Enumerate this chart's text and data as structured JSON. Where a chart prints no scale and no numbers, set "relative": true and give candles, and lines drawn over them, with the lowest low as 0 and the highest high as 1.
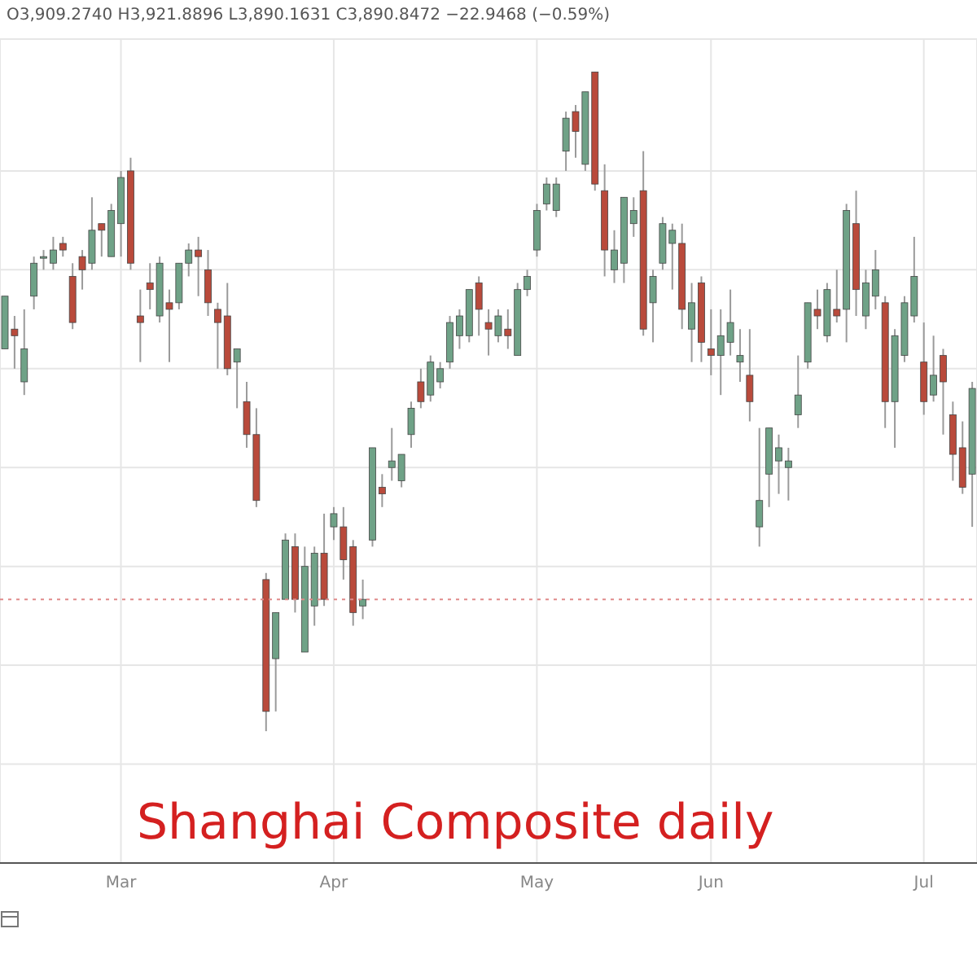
{
  "chart_data": {
    "type": "candlestick",
    "relative": true,
    "grid": true,
    "annotations": [
      "O3,909.2740 H3,921.8896 L3,890.1631 C3,890.8472 −22.9468 (−0.59%)",
      "Shanghai Composite daily"
    ],
    "colors": [
      "#6fa287",
      "#b94a3b",
      "#6fa287",
      "#6fa287",
      "#6fa287",
      "#6fa287",
      "#b94a3b",
      "#b94a3b",
      "#b94a3b",
      "#6fa287",
      "#b94a3b",
      "#6fa287",
      "#6fa287",
      "#b94a3b",
      "#b94a3b",
      "#b94a3b",
      "#6fa287",
      "#b94a3b",
      "#6fa287",
      "#6fa287",
      "#b94a3b",
      "#b94a3b",
      "#b94a3b",
      "#b94a3b",
      "#6fa287",
      "#b94a3b",
      "#b94a3b",
      "#b94a3b",
      "#6fa287",
      "#6fa287",
      "#b94a3b",
      "#6fa287",
      "#6fa287",
      "#b94a3b",
      "#6fa287",
      "#b94a3b",
      "#b94a3b",
      "#6fa287",
      "#6fa287",
      "#b94a3b",
      "#6fa287",
      "#6fa287",
      "#6fa287",
      "#b94a3b",
      "#6fa287",
      "#6fa287",
      "#6fa287",
      "#6fa287",
      "#6fa287",
      "#b94a3b",
      "#b94a3b",
      "#6fa287",
      "#b94a3b",
      "#6fa287",
      "#6fa287",
      "#6fa287",
      "#6fa287",
      "#6fa287",
      "#6fa287",
      "#b94a3b",
      "#6fa287",
      "#b94a3b",
      "#b94a3b",
      "#6fa287",
      "#6fa287",
      "#6fa287",
      "#b94a3b",
      "#6fa287",
      "#6fa287",
      "#6fa287",
      "#b94a3b",
      "#6fa287",
      "#b94a3b",
      "#b94a3b",
      "#6fa287",
      "#6fa287",
      "#6fa287",
      "#b94a3b",
      "#6fa287",
      "#6fa287",
      "#6fa287",
      "#6fa287",
      "#6fa287",
      "#6fa287",
      "#b94a3b",
      "#6fa287",
      "#b94a3b",
      "#6fa287",
      "#b94a3b",
      "#6fa287",
      "#6fa287",
      "#b94a3b",
      "#6fa287",
      "#6fa287",
      "#6fa287",
      "#b94a3b",
      "#6fa287",
      "#b94a3b",
      "#b94a3b",
      "#b94a3b",
      "#6fa287"
    ],
    "ref_lines": [
      {
        "axis": "y",
        "value": 0.2,
        "color": "#e08a8a",
        "line_style": "dotted"
      }
    ],
    "categories": [
      null,
      null,
      null,
      null,
      null,
      null,
      null,
      null,
      null,
      null,
      null,
      null,
      "Mar",
      null,
      null,
      null,
      null,
      null,
      null,
      null,
      null,
      null,
      null,
      null,
      null,
      null,
      null,
      null,
      null,
      null,
      null,
      null,
      null,
      null,
      "Apr",
      null,
      null,
      null,
      null,
      null,
      null,
      null,
      null,
      null,
      null,
      null,
      null,
      null,
      null,
      null,
      null,
      null,
      null,
      null,
      null,
      "May",
      null,
      null,
      null,
      null,
      null,
      null,
      null,
      null,
      null,
      null,
      null,
      null,
      null,
      null,
      null,
      null,
      null,
      "Jun",
      null,
      null,
      null,
      null,
      null,
      null,
      null,
      null,
      null,
      null,
      null,
      null,
      null,
      null,
      null,
      null,
      null,
      null,
      null,
      null,
      null,
      "Jul",
      null,
      null,
      null,
      null,
      null
    ],
    "ohlc": [
      [
        0.58,
        0.66,
        0.58,
        0.66
      ],
      [
        0.61,
        0.63,
        0.55,
        0.6
      ],
      [
        0.53,
        0.64,
        0.51,
        0.58
      ],
      [
        0.66,
        0.72,
        0.64,
        0.71
      ],
      [
        0.72,
        0.73,
        0.7,
        0.72
      ],
      [
        0.71,
        0.75,
        0.7,
        0.73
      ],
      [
        0.74,
        0.75,
        0.72,
        0.73
      ],
      [
        0.69,
        0.71,
        0.61,
        0.62
      ],
      [
        0.72,
        0.73,
        0.67,
        0.7
      ],
      [
        0.71,
        0.81,
        0.7,
        0.76
      ],
      [
        0.77,
        0.77,
        0.72,
        0.76
      ],
      [
        0.72,
        0.8,
        0.72,
        0.79
      ],
      [
        0.77,
        0.85,
        0.72,
        0.84
      ],
      [
        0.85,
        0.87,
        0.7,
        0.71
      ],
      [
        0.63,
        0.67,
        0.56,
        0.62
      ],
      [
        0.68,
        0.71,
        0.64,
        0.67
      ],
      [
        0.63,
        0.72,
        0.62,
        0.71
      ],
      [
        0.65,
        0.67,
        0.56,
        0.64
      ],
      [
        0.65,
        0.71,
        0.64,
        0.71
      ],
      [
        0.71,
        0.74,
        0.69,
        0.73
      ],
      [
        0.73,
        0.75,
        0.66,
        0.72
      ],
      [
        0.7,
        0.73,
        0.63,
        0.65
      ],
      [
        0.64,
        0.65,
        0.55,
        0.62
      ],
      [
        0.63,
        0.68,
        0.54,
        0.55
      ],
      [
        0.56,
        0.58,
        0.49,
        0.58
      ],
      [
        0.5,
        0.53,
        0.43,
        0.45
      ],
      [
        0.45,
        0.49,
        0.34,
        0.35
      ],
      [
        0.23,
        0.24,
        0.0,
        0.03
      ],
      [
        0.11,
        0.18,
        0.03,
        0.18
      ],
      [
        0.2,
        0.3,
        0.2,
        0.29
      ],
      [
        0.28,
        0.3,
        0.18,
        0.2
      ],
      [
        0.12,
        0.28,
        0.12,
        0.25
      ],
      [
        0.19,
        0.28,
        0.16,
        0.27
      ],
      [
        0.27,
        0.33,
        0.19,
        0.2
      ],
      [
        0.31,
        0.34,
        0.29,
        0.33
      ],
      [
        0.31,
        0.34,
        0.23,
        0.26
      ],
      [
        0.28,
        0.29,
        0.16,
        0.18
      ],
      [
        0.19,
        0.23,
        0.17,
        0.2
      ],
      [
        0.29,
        0.43,
        0.28,
        0.43
      ],
      [
        0.37,
        0.39,
        0.34,
        0.36
      ],
      [
        0.4,
        0.46,
        0.38,
        0.41
      ],
      [
        0.38,
        0.42,
        0.37,
        0.42
      ],
      [
        0.45,
        0.5,
        0.43,
        0.49
      ],
      [
        0.53,
        0.55,
        0.49,
        0.5
      ],
      [
        0.51,
        0.57,
        0.5,
        0.56
      ],
      [
        0.53,
        0.56,
        0.52,
        0.55
      ],
      [
        0.56,
        0.63,
        0.55,
        0.62
      ],
      [
        0.6,
        0.64,
        0.58,
        0.63
      ],
      [
        0.6,
        0.67,
        0.59,
        0.67
      ],
      [
        0.68,
        0.69,
        0.6,
        0.64
      ],
      [
        0.62,
        0.64,
        0.57,
        0.61
      ],
      [
        0.6,
        0.64,
        0.59,
        0.63
      ],
      [
        0.61,
        0.64,
        0.58,
        0.6
      ],
      [
        0.57,
        0.68,
        0.57,
        0.67
      ],
      [
        0.67,
        0.7,
        0.66,
        0.69
      ],
      [
        0.73,
        0.8,
        0.72,
        0.79
      ],
      [
        0.8,
        0.84,
        0.79,
        0.83
      ],
      [
        0.79,
        0.84,
        0.78,
        0.83
      ],
      [
        0.88,
        0.94,
        0.85,
        0.93
      ],
      [
        0.94,
        0.95,
        0.87,
        0.91
      ],
      [
        0.86,
        0.97,
        0.85,
        0.97
      ],
      [
        1.0,
        1.0,
        0.82,
        0.83
      ],
      [
        0.82,
        0.86,
        0.69,
        0.73
      ],
      [
        0.7,
        0.76,
        0.68,
        0.73
      ],
      [
        0.71,
        0.81,
        0.68,
        0.81
      ],
      [
        0.77,
        0.81,
        0.75,
        0.79
      ],
      [
        0.82,
        0.88,
        0.6,
        0.61
      ],
      [
        0.65,
        0.7,
        0.59,
        0.69
      ],
      [
        0.71,
        0.78,
        0.7,
        0.77
      ],
      [
        0.74,
        0.77,
        0.67,
        0.76
      ],
      [
        0.74,
        0.77,
        0.61,
        0.64
      ],
      [
        0.61,
        0.68,
        0.56,
        0.65
      ],
      [
        0.68,
        0.69,
        0.56,
        0.59
      ],
      [
        0.58,
        0.64,
        0.54,
        0.57
      ],
      [
        0.57,
        0.64,
        0.51,
        0.6
      ],
      [
        0.59,
        0.67,
        0.57,
        0.62
      ],
      [
        0.56,
        0.61,
        0.53,
        0.57
      ],
      [
        0.54,
        0.61,
        0.47,
        0.5
      ],
      [
        0.31,
        0.46,
        0.28,
        0.35
      ],
      [
        0.39,
        0.46,
        0.34,
        0.46
      ],
      [
        0.41,
        0.45,
        0.36,
        0.43
      ],
      [
        0.4,
        0.43,
        0.35,
        0.41
      ],
      [
        0.48,
        0.57,
        0.46,
        0.51
      ],
      [
        0.56,
        0.65,
        0.55,
        0.65
      ],
      [
        0.64,
        0.67,
        0.61,
        0.63
      ],
      [
        0.6,
        0.68,
        0.59,
        0.67
      ],
      [
        0.64,
        0.7,
        0.62,
        0.63
      ],
      [
        0.64,
        0.8,
        0.59,
        0.79
      ],
      [
        0.77,
        0.82,
        0.63,
        0.67
      ],
      [
        0.63,
        0.7,
        0.61,
        0.68
      ],
      [
        0.66,
        0.73,
        0.64,
        0.7
      ],
      [
        0.65,
        0.66,
        0.46,
        0.5
      ],
      [
        0.5,
        0.61,
        0.43,
        0.6
      ],
      [
        0.57,
        0.66,
        0.56,
        0.65
      ],
      [
        0.63,
        0.75,
        0.62,
        0.69
      ],
      [
        0.56,
        0.62,
        0.48,
        0.5
      ],
      [
        0.51,
        0.6,
        0.5,
        0.54
      ],
      [
        0.57,
        0.58,
        0.45,
        0.53
      ],
      [
        0.48,
        0.5,
        0.38,
        0.42
      ],
      [
        0.43,
        0.47,
        0.36,
        0.37
      ],
      [
        0.39,
        0.53,
        0.31,
        0.52
      ]
    ]
  }
}
